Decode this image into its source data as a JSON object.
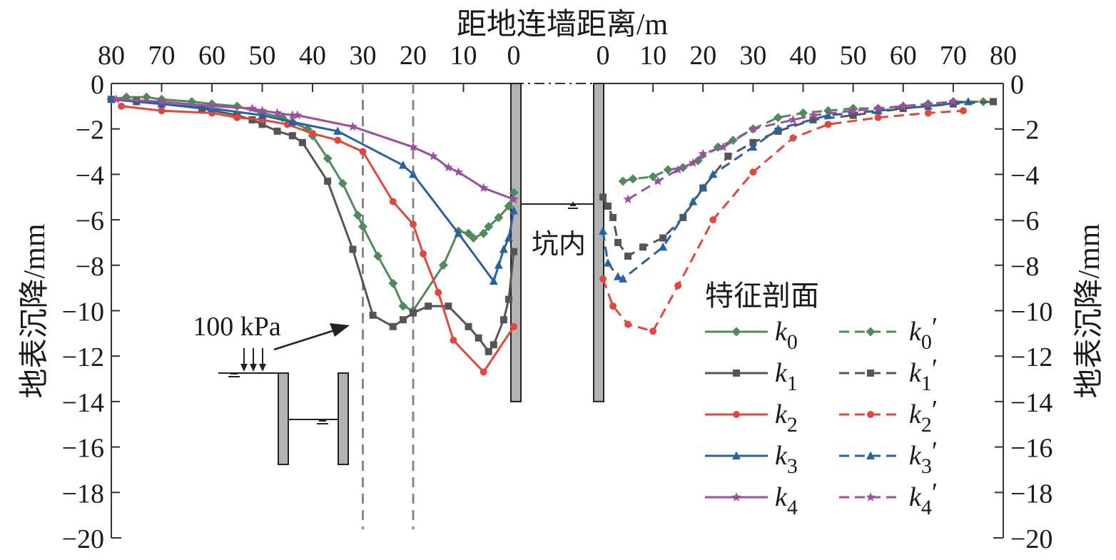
{
  "chart_data": {
    "type": "line",
    "title": "距地连墙距离/m",
    "ylabel_left": "地表沉降/mm",
    "ylabel_right": "地表沉降/mm",
    "ylim": [
      -20,
      0
    ],
    "y_ticks": [
      0,
      -2,
      -4,
      -6,
      -8,
      -10,
      -12,
      -14,
      -16,
      -18,
      -20
    ],
    "x_ticks_left": [
      80,
      70,
      60,
      50,
      40,
      30,
      20,
      10,
      0
    ],
    "x_ticks_right": [
      0,
      10,
      20,
      30,
      40,
      50,
      60,
      70,
      80
    ],
    "xlim_left": [
      80,
      0
    ],
    "xlim_right": [
      0,
      80
    ],
    "grid": false,
    "legend_title": "特征剖面",
    "legend_position": "bottom-right",
    "annotations": {
      "load": "100 kPa",
      "pit_inside": "坑内"
    },
    "reference_lines_x_left": [
      30,
      20
    ],
    "wall_depth": -14,
    "series": [
      {
        "name": "k0",
        "subscript": "0",
        "side": "left",
        "style": "solid",
        "marker": "diamond",
        "color": "#4f8a5b",
        "points": [
          [
            80,
            -0.7
          ],
          [
            77,
            -0.6
          ],
          [
            73,
            -0.6
          ],
          [
            70,
            -0.7
          ],
          [
            64,
            -0.8
          ],
          [
            60,
            -0.9
          ],
          [
            55,
            -1.0
          ],
          [
            50,
            -1.3
          ],
          [
            46,
            -1.5
          ],
          [
            44,
            -1.7
          ],
          [
            41,
            -2.0
          ],
          [
            40,
            -2.3
          ],
          [
            37,
            -3.3
          ],
          [
            34,
            -4.4
          ],
          [
            31,
            -5.8
          ],
          [
            30,
            -6.3
          ],
          [
            27,
            -7.6
          ],
          [
            24,
            -8.8
          ],
          [
            22,
            -9.8
          ],
          [
            20,
            -10.0
          ],
          [
            14,
            -8.0
          ],
          [
            11,
            -6.5
          ],
          [
            9,
            -6.6
          ],
          [
            8,
            -6.8
          ],
          [
            6,
            -6.6
          ],
          [
            5,
            -6.3
          ],
          [
            3,
            -5.9
          ],
          [
            1,
            -5.4
          ],
          [
            0,
            -4.8
          ]
        ]
      },
      {
        "name": "k0'",
        "subscript": "0",
        "side": "right",
        "style": "dashed",
        "marker": "diamond",
        "color": "#4f8a5b",
        "points": [
          [
            4,
            -4.3
          ],
          [
            6,
            -4.2
          ],
          [
            10,
            -4.1
          ],
          [
            13,
            -3.8
          ],
          [
            16,
            -3.7
          ],
          [
            19,
            -3.4
          ],
          [
            23,
            -2.8
          ],
          [
            26,
            -2.5
          ],
          [
            30,
            -2.0
          ],
          [
            35,
            -1.5
          ],
          [
            40,
            -1.3
          ],
          [
            45,
            -1.2
          ],
          [
            50,
            -1.1
          ],
          [
            55,
            -1.1
          ],
          [
            60,
            -1.0
          ],
          [
            65,
            -0.9
          ],
          [
            70,
            -0.8
          ],
          [
            76,
            -0.8
          ]
        ]
      },
      {
        "name": "k1",
        "subscript": "1",
        "side": "left",
        "style": "solid",
        "marker": "square",
        "color": "#555555",
        "points": [
          [
            80,
            -0.7
          ],
          [
            75,
            -0.8
          ],
          [
            70,
            -0.9
          ],
          [
            62,
            -1.1
          ],
          [
            55,
            -1.4
          ],
          [
            52,
            -1.6
          ],
          [
            50,
            -1.8
          ],
          [
            47,
            -2.1
          ],
          [
            44,
            -2.3
          ],
          [
            42,
            -2.6
          ],
          [
            37,
            -4.3
          ],
          [
            32,
            -7.3
          ],
          [
            28,
            -10.2
          ],
          [
            24,
            -10.7
          ],
          [
            22,
            -10.4
          ],
          [
            20,
            -10.1
          ],
          [
            17,
            -9.8
          ],
          [
            13,
            -9.8
          ],
          [
            9,
            -10.7
          ],
          [
            7,
            -11.2
          ],
          [
            5,
            -11.8
          ],
          [
            4,
            -11.5
          ],
          [
            2,
            -10.4
          ],
          [
            1,
            -9.5
          ],
          [
            0,
            -7.4
          ]
        ]
      },
      {
        "name": "k1'",
        "subscript": "1",
        "side": "right",
        "style": "dashed",
        "marker": "square",
        "color": "#555555",
        "points": [
          [
            0,
            -5.0
          ],
          [
            1,
            -5.4
          ],
          [
            2,
            -5.9
          ],
          [
            3,
            -7.0
          ],
          [
            5,
            -7.6
          ],
          [
            8,
            -7.2
          ],
          [
            12,
            -6.8
          ],
          [
            16,
            -5.9
          ],
          [
            20,
            -4.6
          ],
          [
            25,
            -3.2
          ],
          [
            30,
            -2.6
          ],
          [
            35,
            -2.1
          ],
          [
            42,
            -1.6
          ],
          [
            50,
            -1.4
          ],
          [
            60,
            -1.1
          ],
          [
            70,
            -0.9
          ],
          [
            78,
            -0.8
          ]
        ]
      },
      {
        "name": "k2",
        "subscript": "2",
        "side": "left",
        "style": "solid",
        "marker": "circle",
        "color": "#e0483e",
        "points": [
          [
            78,
            -1.0
          ],
          [
            70,
            -1.2
          ],
          [
            60,
            -1.3
          ],
          [
            55,
            -1.5
          ],
          [
            50,
            -1.6
          ],
          [
            45,
            -1.8
          ],
          [
            40,
            -2.2
          ],
          [
            35,
            -2.5
          ],
          [
            30,
            -3.0
          ],
          [
            24,
            -5.2
          ],
          [
            20,
            -6.2
          ],
          [
            18,
            -7.5
          ],
          [
            15,
            -9.2
          ],
          [
            12,
            -11.3
          ],
          [
            6,
            -12.7
          ],
          [
            0,
            -10.7
          ]
        ]
      },
      {
        "name": "k2'",
        "subscript": "2",
        "side": "right",
        "style": "dashed",
        "marker": "circle",
        "color": "#e0483e",
        "points": [
          [
            0,
            -8.6
          ],
          [
            2,
            -9.8
          ],
          [
            5,
            -10.6
          ],
          [
            10,
            -10.9
          ],
          [
            15,
            -8.9
          ],
          [
            22,
            -6.0
          ],
          [
            30,
            -3.9
          ],
          [
            38,
            -2.4
          ],
          [
            45,
            -1.8
          ],
          [
            55,
            -1.5
          ],
          [
            65,
            -1.3
          ],
          [
            72,
            -1.2
          ]
        ]
      },
      {
        "name": "k3",
        "subscript": "3",
        "side": "left",
        "style": "solid",
        "marker": "triangle",
        "color": "#2a61a0",
        "points": [
          [
            80,
            -0.7
          ],
          [
            70,
            -0.9
          ],
          [
            60,
            -1.1
          ],
          [
            50,
            -1.4
          ],
          [
            44,
            -1.7
          ],
          [
            35,
            -2.1
          ],
          [
            22,
            -3.6
          ],
          [
            20,
            -4.0
          ],
          [
            11,
            -6.6
          ],
          [
            4,
            -8.7
          ],
          [
            3,
            -8.0
          ],
          [
            2,
            -7.3
          ],
          [
            1,
            -6.8
          ],
          [
            0,
            -5.6
          ]
        ]
      },
      {
        "name": "k3'",
        "subscript": "3",
        "side": "right",
        "style": "dashed",
        "marker": "triangle",
        "color": "#2a61a0",
        "points": [
          [
            0,
            -6.5
          ],
          [
            1,
            -7.9
          ],
          [
            3,
            -8.5
          ],
          [
            4,
            -8.6
          ],
          [
            12,
            -7.2
          ],
          [
            18,
            -5.2
          ],
          [
            20,
            -4.6
          ],
          [
            22,
            -4.0
          ],
          [
            30,
            -2.8
          ],
          [
            35,
            -2.0
          ],
          [
            45,
            -1.4
          ],
          [
            55,
            -1.2
          ],
          [
            65,
            -1.0
          ],
          [
            73,
            -0.8
          ]
        ]
      },
      {
        "name": "k4",
        "subscript": "4",
        "side": "left",
        "style": "solid",
        "marker": "star",
        "color": "#9c4f9e",
        "points": [
          [
            79,
            -0.7
          ],
          [
            70,
            -0.8
          ],
          [
            60,
            -1.0
          ],
          [
            52,
            -1.1
          ],
          [
            50,
            -1.2
          ],
          [
            47,
            -1.3
          ],
          [
            44,
            -1.4
          ],
          [
            43,
            -1.4
          ],
          [
            32,
            -1.9
          ],
          [
            20,
            -2.8
          ],
          [
            16,
            -3.2
          ],
          [
            13,
            -3.7
          ],
          [
            11,
            -3.9
          ],
          [
            6,
            -4.6
          ],
          [
            0,
            -5.1
          ]
        ]
      },
      {
        "name": "k4'",
        "subscript": "4",
        "side": "right",
        "style": "dashed",
        "marker": "star",
        "color": "#9c4f9e",
        "points": [
          [
            5,
            -5.1
          ],
          [
            11,
            -4.3
          ],
          [
            15,
            -3.8
          ],
          [
            18,
            -3.5
          ],
          [
            20,
            -3.1
          ],
          [
            24,
            -2.8
          ],
          [
            30,
            -2.0
          ],
          [
            38,
            -1.6
          ],
          [
            42,
            -1.4
          ],
          [
            50,
            -1.2
          ],
          [
            55,
            -1.1
          ],
          [
            60,
            -1.0
          ],
          [
            65,
            -0.9
          ],
          [
            70,
            -0.8
          ]
        ]
      }
    ]
  }
}
